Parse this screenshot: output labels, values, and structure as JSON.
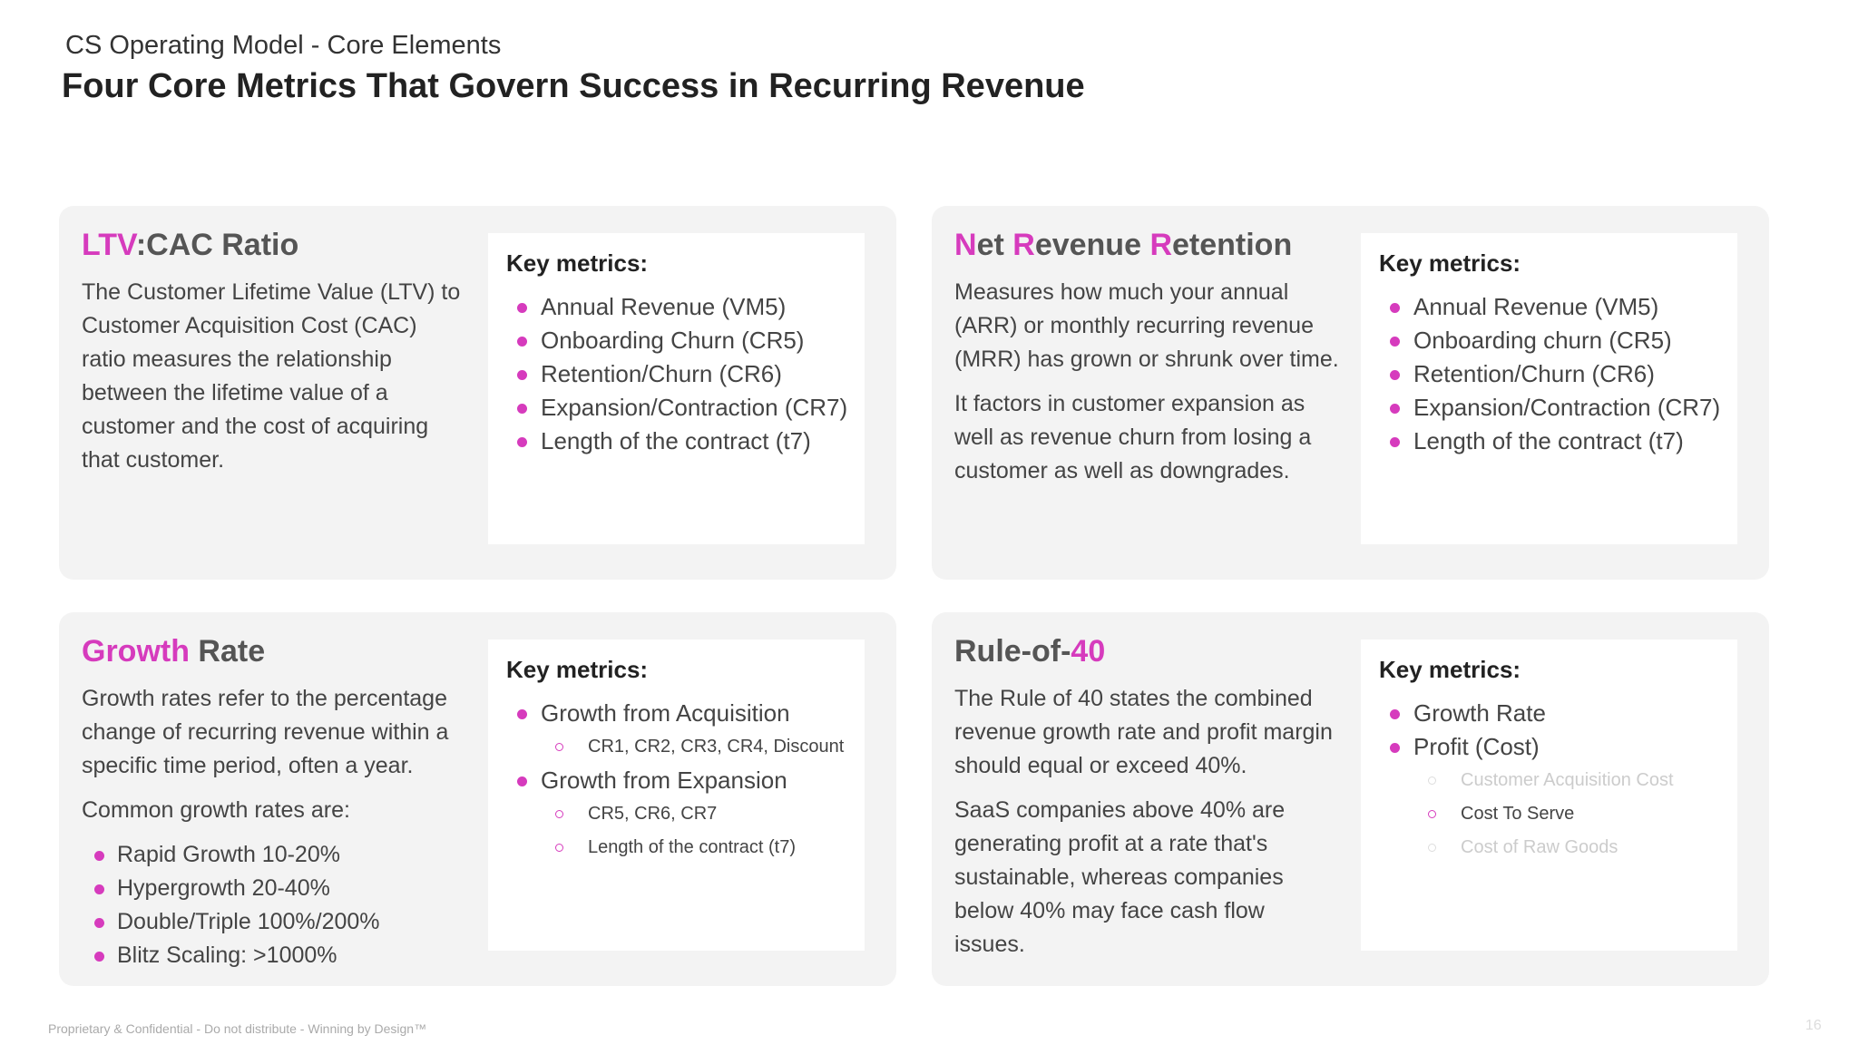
{
  "header": {
    "subtitle": "CS Operating Model - Core Elements",
    "title": "Four Core Metrics That Govern Success in Recurring Revenue"
  },
  "accent_color": "#d63bbd",
  "cards": [
    {
      "title": [
        {
          "text": "LTV",
          "accent": true
        },
        {
          "text": ":CAC Ratio"
        }
      ],
      "paragraphs": [
        "The Customer Lifetime Value (LTV) to Customer Acquisition Cost (CAC) ratio measures the relationship between the lifetime value of a customer and the cost of acquiring that customer."
      ],
      "metrics_label": "Key metrics:",
      "metrics": [
        {
          "text": "Annual Revenue (VM5)"
        },
        {
          "text": "Onboarding Churn (CR5)"
        },
        {
          "text": "Retention/Churn (CR6)"
        },
        {
          "text": "Expansion/Contraction (CR7)"
        },
        {
          "text": "Length of the contract (t7)"
        }
      ]
    },
    {
      "title": [
        {
          "text": "N",
          "accent": true
        },
        {
          "text": "et "
        },
        {
          "text": "R",
          "accent": true
        },
        {
          "text": "evenue "
        },
        {
          "text": "R",
          "accent": true
        },
        {
          "text": "etention"
        }
      ],
      "paragraphs": [
        "Measures how much your annual (ARR) or monthly recurring revenue (MRR) has grown or shrunk over time.",
        "It factors in customer expansion as well as revenue churn from losing a customer as well as downgrades."
      ],
      "metrics_label": "Key metrics:",
      "metrics": [
        {
          "text": "Annual Revenue (VM5)"
        },
        {
          "text": "Onboarding churn (CR5)"
        },
        {
          "text": "Retention/Churn (CR6)"
        },
        {
          "text": "Expansion/Contraction (CR7)"
        },
        {
          "text": "Length of the contract (t7)"
        }
      ]
    },
    {
      "title": [
        {
          "text": "Growth",
          "accent": true
        },
        {
          "text": " Rate"
        }
      ],
      "paragraphs": [
        "Growth rates refer to the percentage change of recurring revenue within a specific time period, often a year.",
        "Common growth rates are:"
      ],
      "bullets": [
        "Rapid Growth 10-20%",
        "Hypergrowth 20-40%",
        "Double/Triple 100%/200%",
        "Blitz Scaling: >1000%"
      ],
      "metrics_label": "Key metrics:",
      "metrics": [
        {
          "text": "Growth from Acquisition",
          "sub": [
            {
              "text": "CR1, CR2, CR3, CR4, Discount"
            }
          ]
        },
        {
          "text": "Growth from Expansion",
          "sub": [
            {
              "text": "CR5, CR6, CR7"
            },
            {
              "text": "Length of the contract (t7)"
            }
          ]
        }
      ]
    },
    {
      "title": [
        {
          "text": "Rule-of-"
        },
        {
          "text": "40",
          "accent": true
        }
      ],
      "paragraphs": [
        "The Rule of 40 states the combined revenue growth rate and profit margin should equal or exceed 40%.",
        "SaaS companies above 40% are generating profit at a rate that's sustainable, whereas companies below 40% may face cash flow issues."
      ],
      "metrics_label": "Key metrics:",
      "metrics": [
        {
          "text": "Growth Rate"
        },
        {
          "text": "Profit (Cost)",
          "sub": [
            {
              "text": "Customer Acquisition Cost",
              "muted": true
            },
            {
              "text": "Cost To Serve"
            },
            {
              "text": "Cost of Raw Goods",
              "muted": true
            }
          ]
        }
      ]
    }
  ],
  "footer": {
    "note": "Proprietary & Confidential - Do not distribute - Winning by Design™",
    "page": "16"
  }
}
